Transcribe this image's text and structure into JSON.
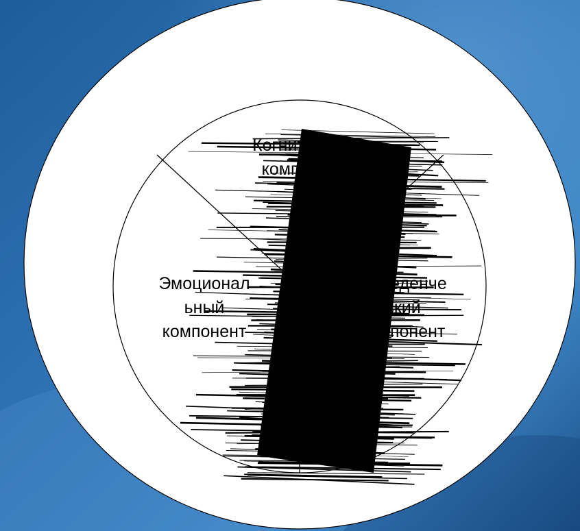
{
  "slide": {
    "background_colors": [
      "#1e5d9c",
      "#2f74b6",
      "#3f87c8",
      "#1b4f86"
    ],
    "outer_circle_fill": "#ffffff",
    "stroke_color": "#000000"
  },
  "diagram": {
    "labels": {
      "cognitive": "Когнитивный\nкомпонент",
      "emotional": "Эмоционал\nьный\nкомпонент",
      "behavioral": "Поведенче\nский\nкомпонент"
    },
    "scribble_color": "#000000"
  }
}
